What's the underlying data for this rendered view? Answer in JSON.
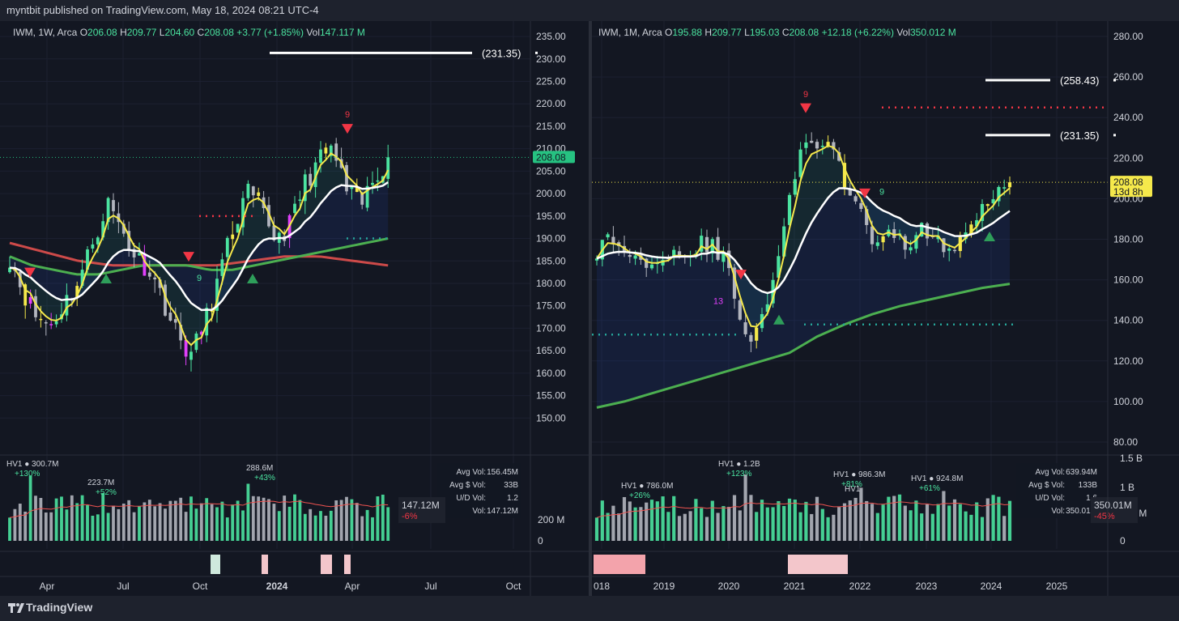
{
  "header": {
    "attribution": "myntbit published on TradingView.com, May 18, 2024 08:21 UTC-4"
  },
  "footer": {
    "brand": "TradingView"
  },
  "colors": {
    "bg": "#131722",
    "up": "#26a69a",
    "bright_up": "#4be3a0",
    "down": "#b2b5be",
    "yellow": "#f5e94b",
    "magenta": "#e040fb",
    "red": "#f23645",
    "green": "#26a69a",
    "white": "#ffffff",
    "ema": "#4caf50",
    "sma": "#ef5350"
  },
  "chart_data": [
    {
      "type": "candlestick",
      "title": "",
      "legend": {
        "symbol": "IWM",
        "interval": "1W",
        "exchange": "Arca",
        "o_label": "O",
        "o": "206.08",
        "h_label": "H",
        "h": "209.77",
        "l_label": "L",
        "l": "204.60",
        "c_label": "C",
        "c": "208.08",
        "change": "+3.77 (+1.85%)",
        "vol_label": "Vol",
        "vol": "147.117 M"
      },
      "y_ticks": [
        "235.00",
        "230.00",
        "225.00",
        "220.00",
        "215.00",
        "210.00",
        "205.00",
        "200.00",
        "195.00",
        "190.00",
        "185.00",
        "180.00",
        "175.00",
        "170.00",
        "165.00",
        "160.00",
        "155.00",
        "150.00"
      ],
      "ylim": [
        145,
        237
      ],
      "x_ticks": [
        "Apr",
        "Jul",
        "Oct",
        "2024",
        "Apr",
        "Jul",
        "Oct"
      ],
      "price_tag": "208.08",
      "level_label": "(231.35)",
      "level": 231.35,
      "last_close": 208.08,
      "vol_ticks": [
        "200 M",
        "0"
      ],
      "vol_labels": [
        {
          "title": "HV1 ● 300.7M",
          "pct": "+130%"
        },
        {
          "title": "223.7M",
          "pct": "+52%"
        },
        {
          "title": "288.6M",
          "pct": "+43%"
        }
      ],
      "vol_stats": {
        "avg_label": "Avg Vol:",
        "avg": "156.45M",
        "avgd_label": "Avg $ Vol:",
        "avgd": "33B",
        "ud_label": "U/D Vol:",
        "ud": "1.2",
        "vol_label": "Vol:",
        "vol": "147.12M"
      },
      "vol_tag": {
        "value": "147.12M",
        "pct": "-6%"
      },
      "markers": [
        "9",
        "9"
      ]
    },
    {
      "type": "candlestick",
      "title": "",
      "legend": {
        "symbol": "IWM",
        "interval": "1M",
        "exchange": "Arca",
        "o_label": "O",
        "o": "195.88",
        "h_label": "H",
        "h": "209.77",
        "l_label": "L",
        "l": "195.03",
        "c_label": "C",
        "c": "208.08",
        "change": "+12.18 (+6.22%)",
        "vol_label": "Vol",
        "vol": "350.012 M"
      },
      "y_ticks": [
        "280.00",
        "260.00",
        "240.00",
        "220.00",
        "200.00",
        "180.00",
        "160.00",
        "140.00",
        "120.00",
        "100.00",
        "80.00"
      ],
      "ylim": [
        76,
        286
      ],
      "x_ticks": [
        "018",
        "2019",
        "2020",
        "2021",
        "2022",
        "2023",
        "2024",
        "2025"
      ],
      "price_tag": "208.08",
      "price_tag_sub": "13d 8h",
      "level_labels": [
        "(258.43)",
        "(231.35)"
      ],
      "levels": [
        258.43,
        231.35
      ],
      "last_close": 208.08,
      "vol_ticks": [
        "1.5 B",
        "1 B",
        "500 M",
        "0"
      ],
      "vol_labels": [
        {
          "title": "HV1 ● 786.0M",
          "pct": "+26%"
        },
        {
          "title": "HV1 ● 1.2B",
          "pct": "+123%"
        },
        {
          "title": "HV1 ● 986.3M",
          "pct": "+81%"
        },
        {
          "title": "HV1 ● 924.8M",
          "pct": "+61%"
        }
      ],
      "vol_extra_label": "HV1",
      "vol_stats": {
        "avg_label": "Avg Vol:",
        "avg": "639.94M",
        "avgd_label": "Avg $ Vol:",
        "avgd": "133B",
        "ud_label": "U/D Vol:",
        "ud": "1.6",
        "vol_label": "Vol:",
        "vol": "350.01M"
      },
      "vol_tag": {
        "value": "350.01M",
        "pct": "-45%"
      },
      "markers": [
        "9",
        "13",
        "9"
      ]
    }
  ]
}
